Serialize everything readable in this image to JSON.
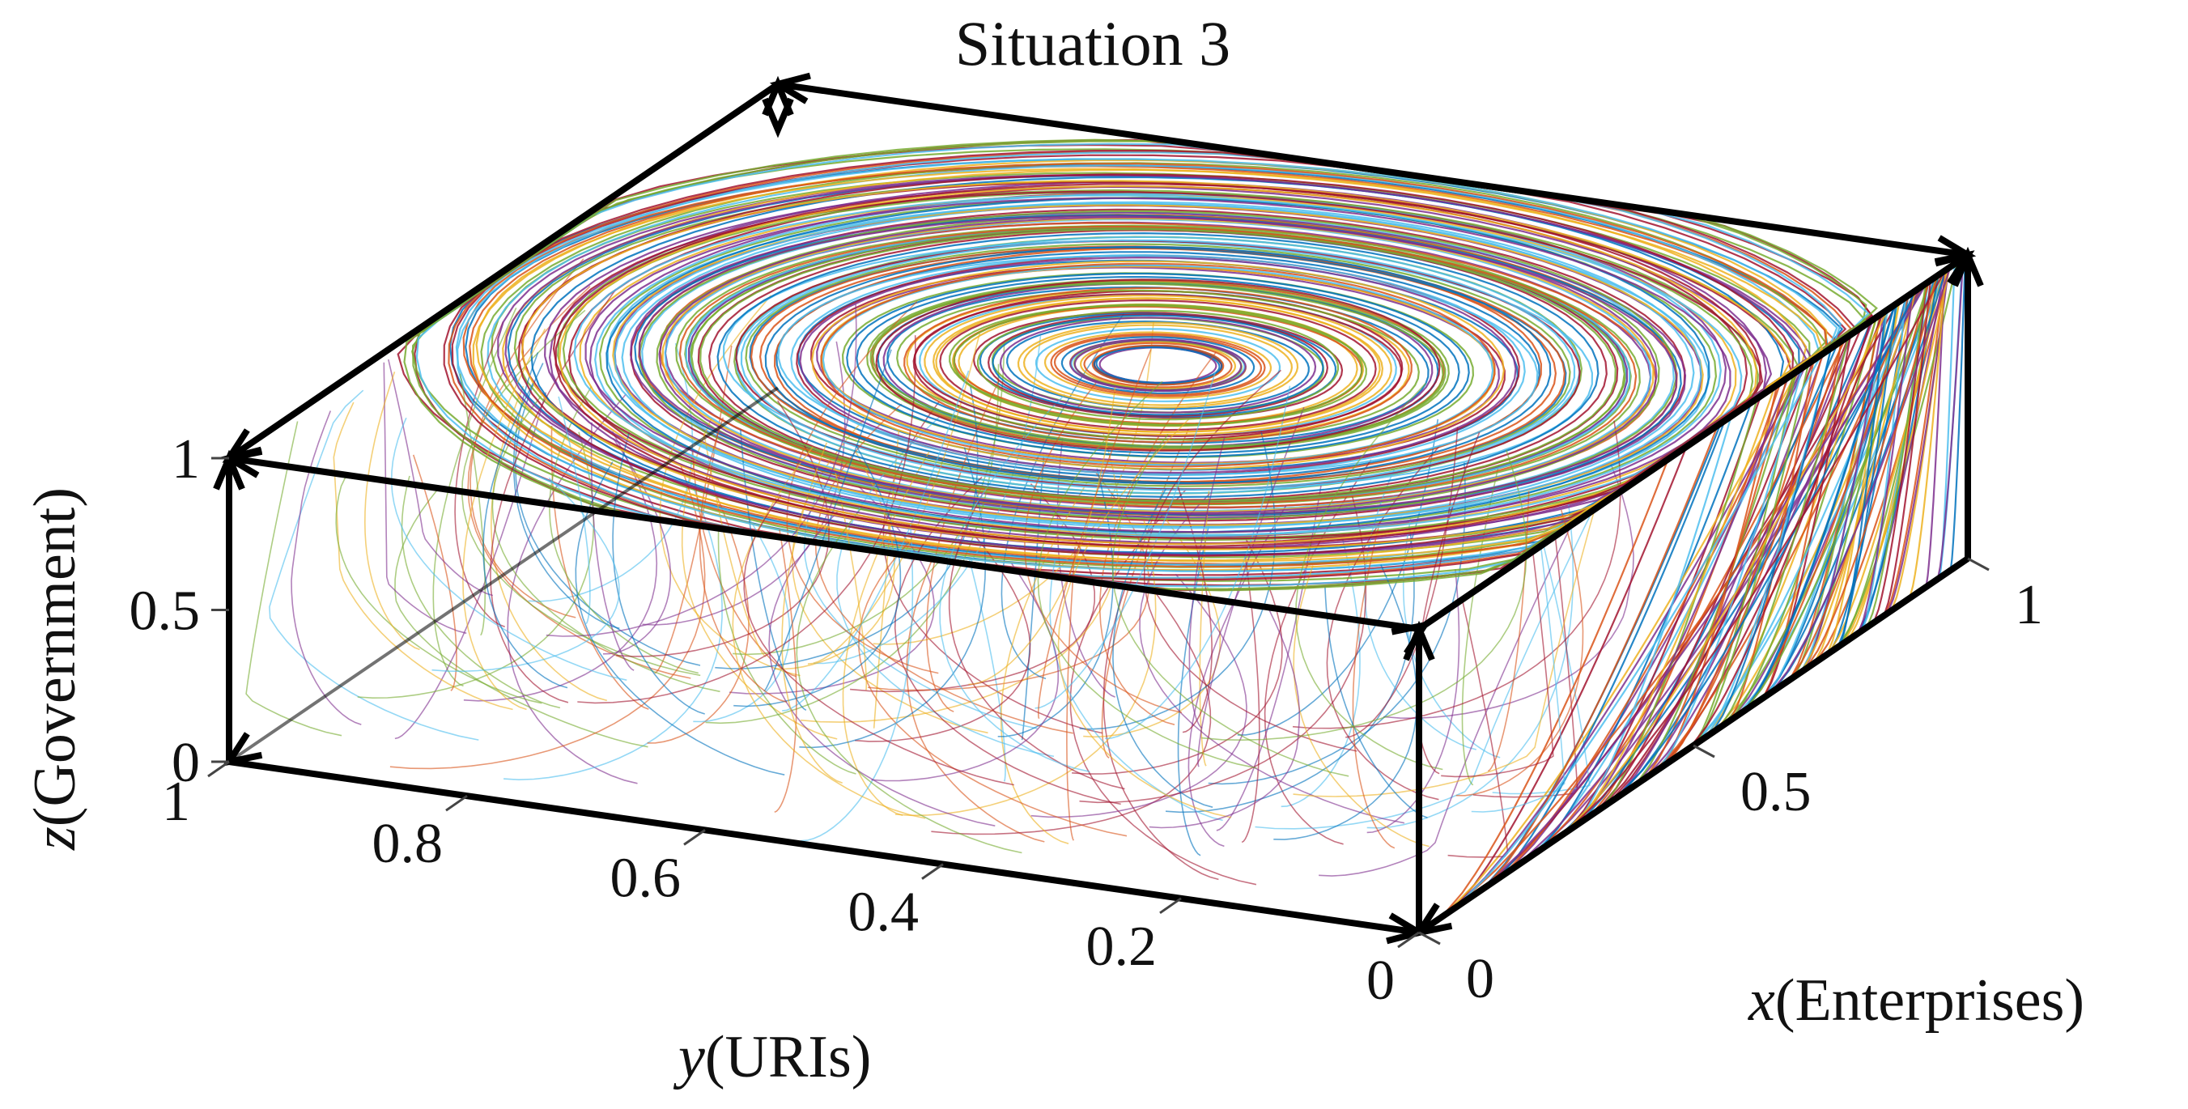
{
  "chart_data": {
    "type": "line",
    "projection": "3d-phase-portrait",
    "title": "Situation 3",
    "xlabel": {
      "var": "x",
      "text": "(Enterprises)"
    },
    "ylabel": {
      "var": "y",
      "text": "(URIs)"
    },
    "zlabel": {
      "var": "z",
      "text": "(Government)"
    },
    "xlim": [
      0,
      1
    ],
    "ylim": [
      0,
      1
    ],
    "zlim": [
      0,
      1
    ],
    "x_ticks": [
      "0",
      "0.5",
      "1"
    ],
    "y_ticks": [
      "0",
      "0.2",
      "0.4",
      "0.6",
      "0.8",
      "1"
    ],
    "z_ticks": [
      "0",
      "0.5",
      "1"
    ],
    "grid": false,
    "legend": "none",
    "trajectory_count": 420,
    "center": {
      "x": 0.5,
      "y": 0.45,
      "z": 1
    },
    "palette": [
      "#0072bd",
      "#d95319",
      "#edb120",
      "#7e2f8e",
      "#77ac30",
      "#4dbeee",
      "#a2142f"
    ],
    "edge_color": "#000000"
  }
}
